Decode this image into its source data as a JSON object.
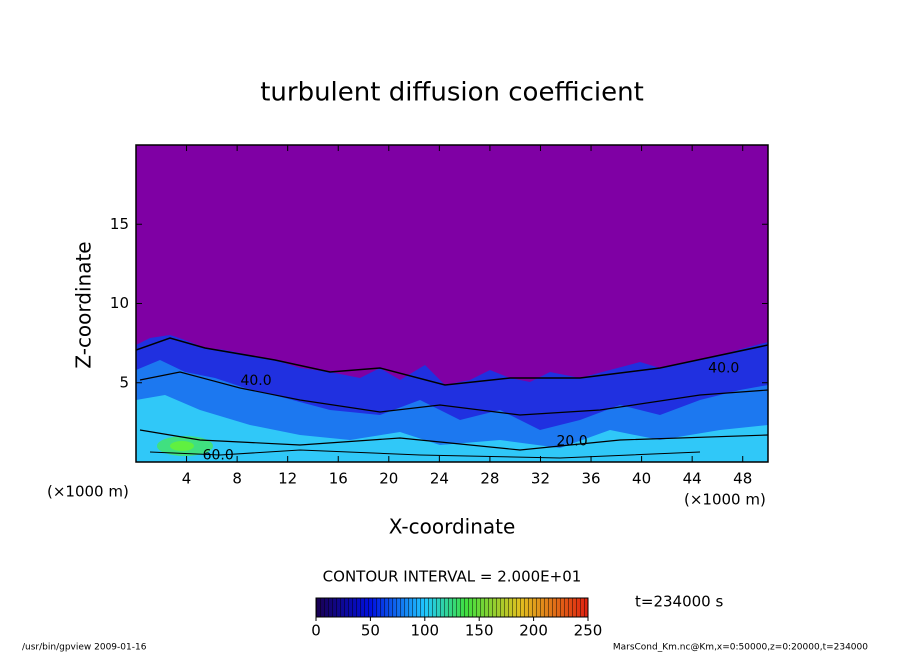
{
  "chart_data": {
    "type": "contour",
    "title": "turbulent diffusion coefficient",
    "xlabel": "X-coordinate",
    "ylabel": "Z-coordinate",
    "xunit": "(×1000 m)",
    "xlim": [
      0,
      50
    ],
    "ylim": [
      0,
      20
    ],
    "xticks": [
      4,
      8,
      12,
      16,
      20,
      24,
      28,
      32,
      36,
      40,
      44,
      48
    ],
    "yticks": [
      5,
      10,
      15
    ],
    "contour_interval": "CONTOUR INTERVAL = 2.000E+01",
    "contour_labels": [
      {
        "x": 9.5,
        "y": 5.1,
        "value": 40,
        "label": "40.0"
      },
      {
        "x": 6.5,
        "y": 0.4,
        "value": 60,
        "label": "60.0"
      },
      {
        "x": 34.5,
        "y": 1.3,
        "value": 20,
        "label": "20.0"
      },
      {
        "x": 46.5,
        "y": 5.9,
        "value": 40,
        "label": "40.0"
      }
    ],
    "colorbar": {
      "clim": [
        0,
        250
      ],
      "ticks": [
        0,
        50,
        100,
        150,
        200,
        250
      ]
    },
    "time_label": "t=234000 s",
    "footer_left": "/usr/bin/gpview  2009-01-16",
    "footer_right": "MarsCond_Km.nc@Km,x=0:50000,z=0:20000,t=234000"
  }
}
